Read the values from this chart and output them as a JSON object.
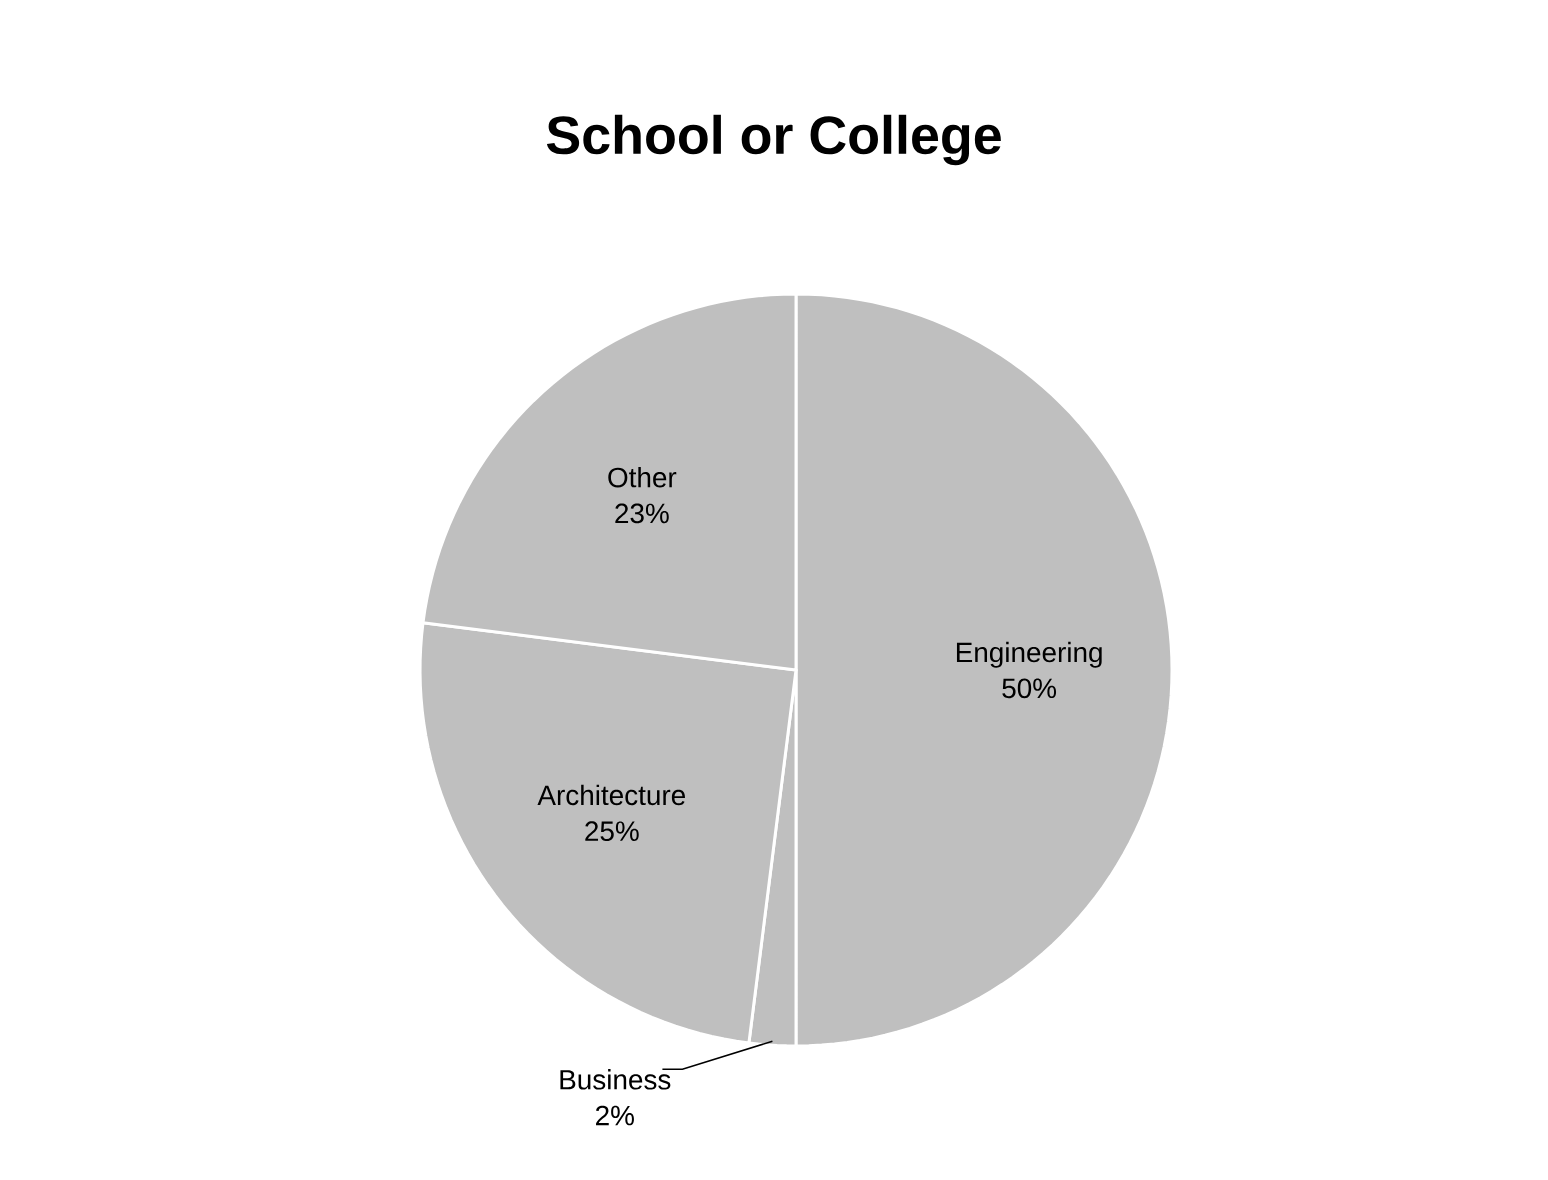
{
  "chart_data": {
    "type": "pie",
    "title": "School or College",
    "categories": [
      "Engineering",
      "Business",
      "Architecture",
      "Other"
    ],
    "values": [
      50,
      2,
      25,
      23
    ],
    "value_labels": [
      "50%",
      "2%",
      "25%",
      "23%"
    ],
    "colors": [
      "#bfbfbf",
      "#bfbfbf",
      "#bfbfbf",
      "#bfbfbf"
    ]
  }
}
